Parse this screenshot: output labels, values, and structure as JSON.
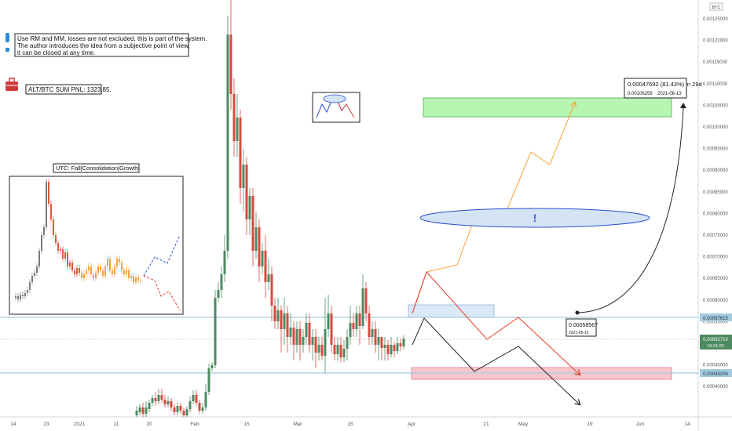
{
  "chart_data": {
    "type": "candlestick",
    "symbol_badge": "BTC",
    "x_tick_labels": [
      "14",
      "23",
      "2021",
      "11",
      "20",
      "Feb",
      "15",
      "Mar",
      "15",
      "Apr",
      "21",
      "May",
      "19",
      "Jun",
      "14"
    ],
    "y_tick_labels": [
      "0.00040000",
      "0.00045000",
      "0.00050000",
      "0.00055000",
      "0.00060000",
      "0.00065000",
      "0.00070000",
      "0.00075000",
      "0.00080000",
      "0.00085000",
      "0.00090000",
      "0.00095000",
      "0.00100000",
      "0.00105000",
      "0.00110000",
      "0.00115000",
      "0.00120000",
      "0.00125000"
    ],
    "ylim": [
      0.000375,
      0.001295
    ],
    "current_price": "0.00052710",
    "countdown": "16:21:02",
    "support_level": "0.00045206",
    "resistance_level": "0.00057615",
    "accent_colors": {
      "up": "#4e8a60",
      "down": "#d9493f",
      "level": "#a4cbe0",
      "target": "#9ef29a",
      "stop": "#f4b3bb"
    }
  },
  "note_text": [
    "Use RM and MM, losses are not excluded, this is part of the system.",
    "The author introduces the idea from a subjective point of view,",
    "it can be closed at any time."
  ],
  "pnl_label": "ALT/BTC SUM PNL: 1323,85.",
  "inset_title": "UTC: Fall|Consolidation|Growth",
  "range_measure": {
    "change": "0.00047692 (81.43%) in 29d",
    "price": "0.00106259",
    "date": "2021-06-13"
  },
  "entry_point": {
    "price": "0.00058567",
    "date": "2021-05-15"
  },
  "ellipse_mark": "!",
  "icons": [
    "exclamation-icon",
    "briefcase-icon"
  ]
}
